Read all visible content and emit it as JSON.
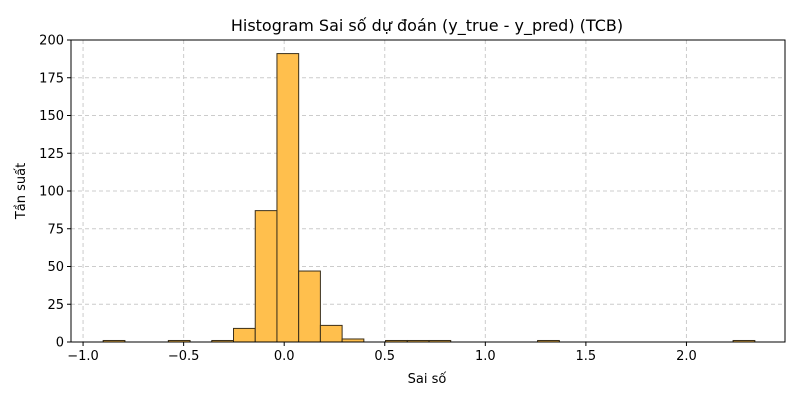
{
  "chart_data": {
    "type": "bar",
    "title": "Histogram Sai số dự đoán (y_true - y_pred) (TCB)",
    "xlabel": "Sai số",
    "ylabel": "Tần suất",
    "xlim": [
      -1.06,
      2.49
    ],
    "ylim": [
      0,
      200
    ],
    "xticks": [
      -1.0,
      -0.5,
      0.0,
      0.5,
      1.0,
      1.5,
      2.0
    ],
    "xtick_labels": [
      "−1.0",
      "−0.5",
      "0.0",
      "0.5",
      "1.0",
      "1.5",
      "2.0"
    ],
    "yticks": [
      0,
      25,
      50,
      75,
      100,
      125,
      150,
      175,
      200
    ],
    "ytick_labels": [
      "0",
      "25",
      "50",
      "75",
      "100",
      "125",
      "150",
      "175",
      "200"
    ],
    "grid": true,
    "bin_edges": [
      -0.9,
      -0.792,
      -0.684,
      -0.576,
      -0.468,
      -0.36,
      -0.252,
      -0.144,
      -0.036,
      0.072,
      0.18,
      0.288,
      0.396,
      0.504,
      0.612,
      0.72,
      0.828,
      0.936,
      1.044,
      1.152,
      1.26,
      1.368,
      1.476,
      1.584,
      1.692,
      1.8,
      1.908,
      2.016,
      2.124,
      2.232,
      2.34
    ],
    "values": [
      1,
      0,
      0,
      1,
      0,
      1,
      9,
      87,
      191,
      47,
      11,
      2,
      0,
      1,
      1,
      1,
      0,
      0,
      0,
      0,
      1,
      0,
      0,
      0,
      0,
      0,
      0,
      0,
      0,
      1
    ],
    "bar_color": "#FFBF4D",
    "edge_color": "#3a2f1a"
  }
}
